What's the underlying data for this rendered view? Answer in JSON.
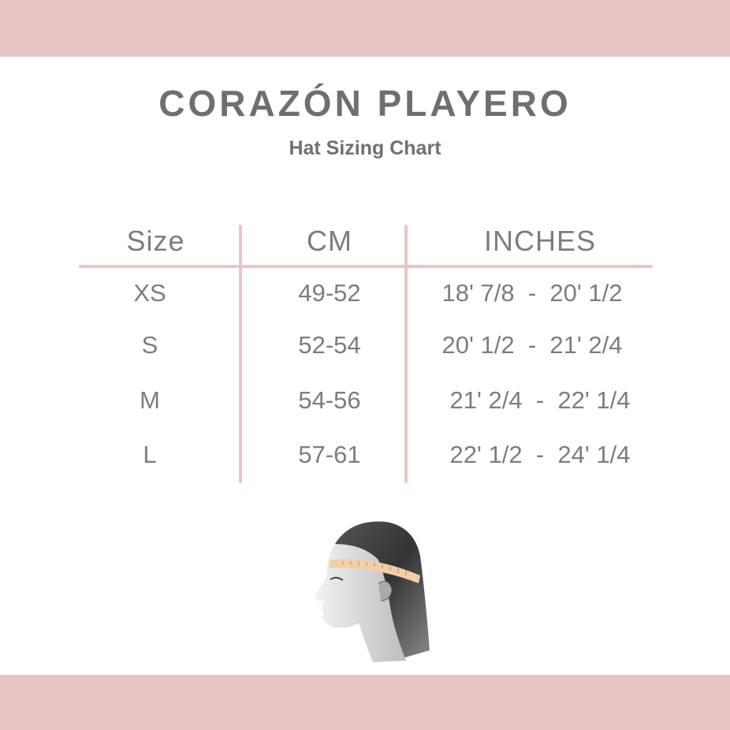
{
  "brand": "CORAZÓN PLAYERO",
  "subtitle": "Hat Sizing Chart",
  "colors": {
    "band": "#e7c5c3",
    "text": "#7c7d80",
    "lines": "#e8c6c4"
  },
  "table": {
    "headers": [
      "Size",
      "CM",
      "INCHES"
    ],
    "rows": [
      [
        "XS",
        "49-52",
        "18' 7/8  -  20' 1/2"
      ],
      [
        "S",
        "52-54",
        "20' 1/2  -  21' 2/4"
      ],
      [
        "M",
        "54-56",
        "21' 2/4  -  22' 1/4"
      ],
      [
        "L",
        "57-61",
        "22' 1/2  -  24' 1/4"
      ]
    ]
  },
  "illustration": "head-measuring-tape-illustration"
}
